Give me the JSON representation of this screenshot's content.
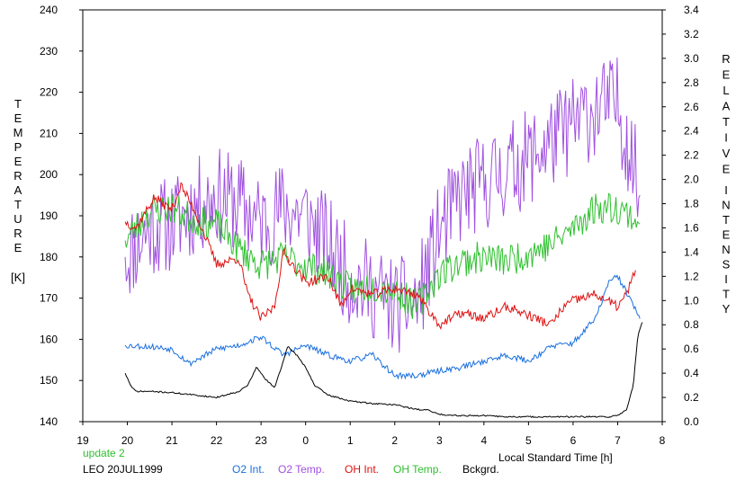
{
  "chart_data": {
    "type": "line",
    "left_axis": {
      "letters": [
        "T",
        "E",
        "M",
        "P",
        "E",
        "R",
        "A",
        "T",
        "U",
        "R",
        "E"
      ],
      "unit": "[K]",
      "ylim": [
        140,
        240
      ],
      "ticks": [
        "140",
        "150",
        "160",
        "170",
        "180",
        "190",
        "200",
        "210",
        "220",
        "230",
        "240"
      ]
    },
    "right_axis": {
      "letters": [
        "R",
        "E",
        "L",
        "A",
        "T",
        "I",
        "V",
        "E"
      ],
      "letters2": [
        "I",
        "N",
        "T",
        "E",
        "N",
        "S",
        "I",
        "T",
        "Y"
      ],
      "ylim": [
        0.0,
        3.4
      ],
      "ticks": [
        "0.0",
        "0.2",
        "0.4",
        "0.6",
        "0.8",
        "1.0",
        "1.2",
        "1.4",
        "1.6",
        "1.8",
        "2.0",
        "2.2",
        "2.4",
        "2.6",
        "2.8",
        "3.0",
        "3.2",
        "3.4"
      ]
    },
    "x_axis": {
      "label": "Local Standard Time [h]",
      "xlim": [
        19,
        32
      ],
      "ticks": [
        "19",
        "20",
        "21",
        "22",
        "23",
        "0",
        "1",
        "2",
        "3",
        "4",
        "5",
        "6",
        "7",
        "8"
      ]
    },
    "grid": false,
    "update_text": "update 2",
    "station_text": "LEO 20JUL1999",
    "legend": [
      {
        "label": "O2 Int.",
        "color": "#1a6fe0"
      },
      {
        "label": "O2 Temp.",
        "color": "#a050e0"
      },
      {
        "label": "OH Int.",
        "color": "#e01010"
      },
      {
        "label": "OH Temp.",
        "color": "#30c030"
      },
      {
        "label": "Bckgrd.",
        "color": "#000000"
      }
    ],
    "series": [
      {
        "name": "O2 Temp.",
        "axis": "left",
        "color": "#a050e0",
        "noise": 12,
        "seed": 11,
        "x": [
          19.95,
          20.5,
          21.0,
          21.5,
          22.0,
          22.5,
          23.0,
          23.5,
          24.0,
          24.5,
          25.0,
          25.5,
          26.0,
          26.5,
          27.0,
          27.5,
          28.0,
          28.5,
          29.0,
          29.5,
          30.0,
          30.5,
          31.0,
          31.3,
          31.5
        ],
        "y": [
          180,
          187,
          188,
          192,
          195,
          193,
          188,
          192,
          190,
          183,
          175,
          172,
          168,
          169,
          186,
          195,
          198,
          201,
          204,
          208,
          212,
          216,
          217,
          205,
          195
        ]
      },
      {
        "name": "OH Temp.",
        "axis": "left",
        "color": "#30c030",
        "noise": 4,
        "seed": 23,
        "x": [
          19.95,
          20.5,
          21.0,
          21.5,
          22.0,
          22.5,
          23.0,
          23.5,
          24.0,
          24.5,
          25.0,
          25.5,
          26.0,
          26.5,
          27.0,
          27.5,
          28.0,
          28.5,
          29.0,
          29.5,
          30.0,
          30.5,
          31.0,
          31.3,
          31.5
        ],
        "y": [
          184,
          191,
          192,
          189,
          188,
          182,
          178,
          180,
          178,
          176,
          172,
          173,
          172,
          168,
          176,
          179,
          180,
          179,
          181,
          183,
          187,
          192,
          192,
          190,
          188
        ]
      },
      {
        "name": "OH Int.",
        "axis": "right",
        "color": "#e01010",
        "noise": 0.04,
        "seed": 37,
        "x": [
          19.95,
          20.2,
          20.6,
          21.0,
          21.2,
          21.5,
          22.0,
          22.5,
          22.7,
          23.0,
          23.3,
          23.5,
          24.0,
          24.5,
          24.8,
          25.0,
          25.5,
          26.0,
          26.5,
          26.7,
          27.0,
          27.5,
          28.0,
          28.5,
          29.0,
          29.5,
          29.8,
          30.0,
          30.5,
          31.0,
          31.2,
          31.4
        ],
        "y": [
          1.65,
          1.6,
          1.85,
          1.75,
          1.95,
          1.75,
          1.3,
          1.35,
          1.05,
          0.85,
          0.95,
          1.4,
          1.15,
          1.2,
          0.95,
          1.1,
          1.05,
          1.1,
          1.05,
          0.95,
          0.8,
          0.9,
          0.85,
          0.95,
          0.88,
          0.8,
          0.95,
          1.0,
          1.05,
          0.95,
          1.05,
          1.25
        ]
      },
      {
        "name": "O2 Int.",
        "axis": "right",
        "color": "#1a6fe0",
        "noise": 0.025,
        "seed": 53,
        "x": [
          19.95,
          20.5,
          21.0,
          21.4,
          21.6,
          22.0,
          22.5,
          23.0,
          23.5,
          24.0,
          24.5,
          25.0,
          25.5,
          26.0,
          26.5,
          27.0,
          27.5,
          28.0,
          28.5,
          29.0,
          29.5,
          30.0,
          30.5,
          30.8,
          31.0,
          31.3,
          31.5
        ],
        "y": [
          0.63,
          0.62,
          0.6,
          0.48,
          0.52,
          0.6,
          0.63,
          0.7,
          0.55,
          0.63,
          0.55,
          0.5,
          0.55,
          0.38,
          0.38,
          0.42,
          0.45,
          0.5,
          0.55,
          0.5,
          0.62,
          0.65,
          0.85,
          1.15,
          1.2,
          1.0,
          0.85
        ]
      },
      {
        "name": "Bckgrd.",
        "axis": "right",
        "color": "#000000",
        "noise": 0.006,
        "seed": 71,
        "x": [
          19.95,
          20.1,
          20.2,
          20.5,
          21.0,
          21.5,
          22.0,
          22.5,
          22.7,
          22.9,
          23.1,
          23.3,
          23.5,
          23.6,
          23.8,
          24.0,
          24.2,
          24.5,
          25.0,
          25.5,
          26.0,
          26.5,
          26.7,
          27.0,
          27.5,
          28.0,
          28.5,
          29.0,
          29.5,
          30.0,
          30.5,
          30.8,
          31.0,
          31.2,
          31.35,
          31.45,
          31.55
        ],
        "y": [
          0.4,
          0.28,
          0.25,
          0.25,
          0.24,
          0.22,
          0.2,
          0.25,
          0.3,
          0.45,
          0.35,
          0.28,
          0.5,
          0.62,
          0.55,
          0.45,
          0.3,
          0.22,
          0.17,
          0.15,
          0.14,
          0.1,
          0.1,
          0.06,
          0.05,
          0.05,
          0.04,
          0.04,
          0.04,
          0.04,
          0.04,
          0.04,
          0.05,
          0.1,
          0.3,
          0.7,
          0.82
        ]
      }
    ]
  }
}
